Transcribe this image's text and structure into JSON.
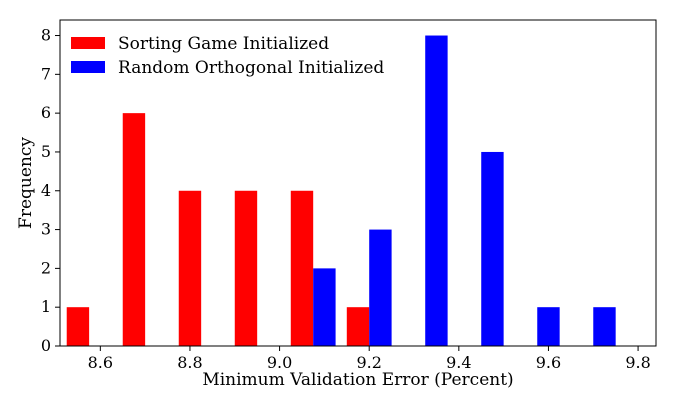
{
  "chart_data": {
    "type": "bar",
    "title": "",
    "xlabel": "Minimum Validation Error (Percent)",
    "ylabel": "Frequency",
    "xlim": [
      8.51,
      9.84
    ],
    "ylim": [
      0,
      8.4
    ],
    "xticks": [
      "8.6",
      "8.8",
      "9.0",
      "9.2",
      "9.4",
      "9.6",
      "9.8"
    ],
    "yticks": [
      "0",
      "1",
      "2",
      "3",
      "4",
      "5",
      "6",
      "7",
      "8"
    ],
    "grid": false,
    "legend_position": "top-left",
    "bar_width": 0.05,
    "series": [
      {
        "name": "Sorting Game Initialized",
        "color": "#ff0000",
        "points": [
          {
            "x": 8.55,
            "y": 1
          },
          {
            "x": 8.675,
            "y": 6
          },
          {
            "x": 8.8,
            "y": 4
          },
          {
            "x": 8.925,
            "y": 4
          },
          {
            "x": 9.05,
            "y": 4
          },
          {
            "x": 9.175,
            "y": 1
          }
        ]
      },
      {
        "name": "Random Orthogonal Initialized",
        "color": "#0000ff",
        "points": [
          {
            "x": 9.1,
            "y": 2
          },
          {
            "x": 9.225,
            "y": 3
          },
          {
            "x": 9.35,
            "y": 8
          },
          {
            "x": 9.475,
            "y": 5
          },
          {
            "x": 9.6,
            "y": 1
          },
          {
            "x": 9.725,
            "y": 1
          }
        ]
      }
    ]
  }
}
